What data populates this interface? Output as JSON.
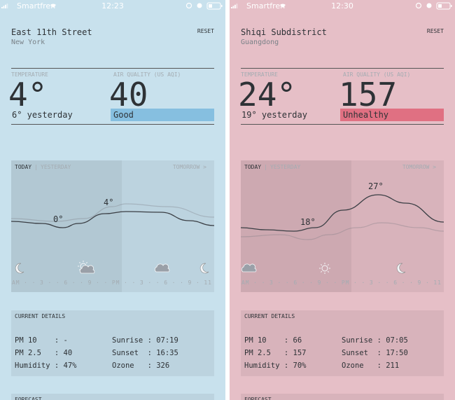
{
  "screens": [
    {
      "background": "#c8e1ed",
      "status": {
        "carrier": "Smartfren",
        "time": "12:23"
      },
      "location": {
        "title": "East 11th Street",
        "subtitle": "New York",
        "reset": "RESET"
      },
      "temperature": {
        "label": "TEMPERATURE",
        "value": "4°",
        "yesterday": "6° yesterday"
      },
      "air_quality": {
        "label": "AIR QUALITY (US AQI)",
        "value": "40",
        "status": "Good",
        "color": "#86bfe0"
      },
      "chart": {
        "today": "TODAY",
        "separator": "|",
        "yesterday": "YESTERDAY",
        "tomorrow": "TOMORROW >",
        "labels": [
          "0°",
          "4°"
        ],
        "axis": "AM · · 3 · · 6 · · 9 · · PM · · 3 · · 6 · · 9 · 11"
      },
      "details": {
        "title": "CURRENT DETAILS",
        "rows": [
          [
            "PM 10    : -",
            "Sunrise : 07:19"
          ],
          [
            "PM 2.5   : 40",
            "Sunset  : 16:35"
          ],
          [
            "Humidity : 47%",
            "Ozone   : 326"
          ]
        ]
      },
      "forecast": {
        "title": "FORECAST"
      }
    },
    {
      "background": "#e6bfc7",
      "status": {
        "carrier": "Smartfren",
        "time": "12:30"
      },
      "location": {
        "title": "Shiqi Subdistrict",
        "subtitle": "Guangdong",
        "reset": "RESET"
      },
      "temperature": {
        "label": "TEMPERATURE",
        "value": "24°",
        "yesterday": "19° yesterday"
      },
      "air_quality": {
        "label": "AIR QUALITY (US AQI)",
        "value": "157",
        "status": "Unhealthy",
        "color": "#e07082"
      },
      "chart": {
        "today": "TODAY",
        "separator": "|",
        "yesterday": "YESTERDAY",
        "tomorrow": "TOMORROW >",
        "labels": [
          "18°",
          "27°"
        ],
        "axis": "AM · · 3 · · 6 · · 9 · · PM · · 3 · · 6 · · 9 · 11"
      },
      "details": {
        "title": "CURRENT DETAILS",
        "rows": [
          [
            "PM 10    : 66",
            "Sunrise : 07:05"
          ],
          [
            "PM 2.5   : 157",
            "Sunset  : 17:50"
          ],
          [
            "Humidity : 70%",
            "Ozone   : 211"
          ]
        ]
      },
      "forecast": {
        "title": "FORECAST"
      }
    }
  ]
}
